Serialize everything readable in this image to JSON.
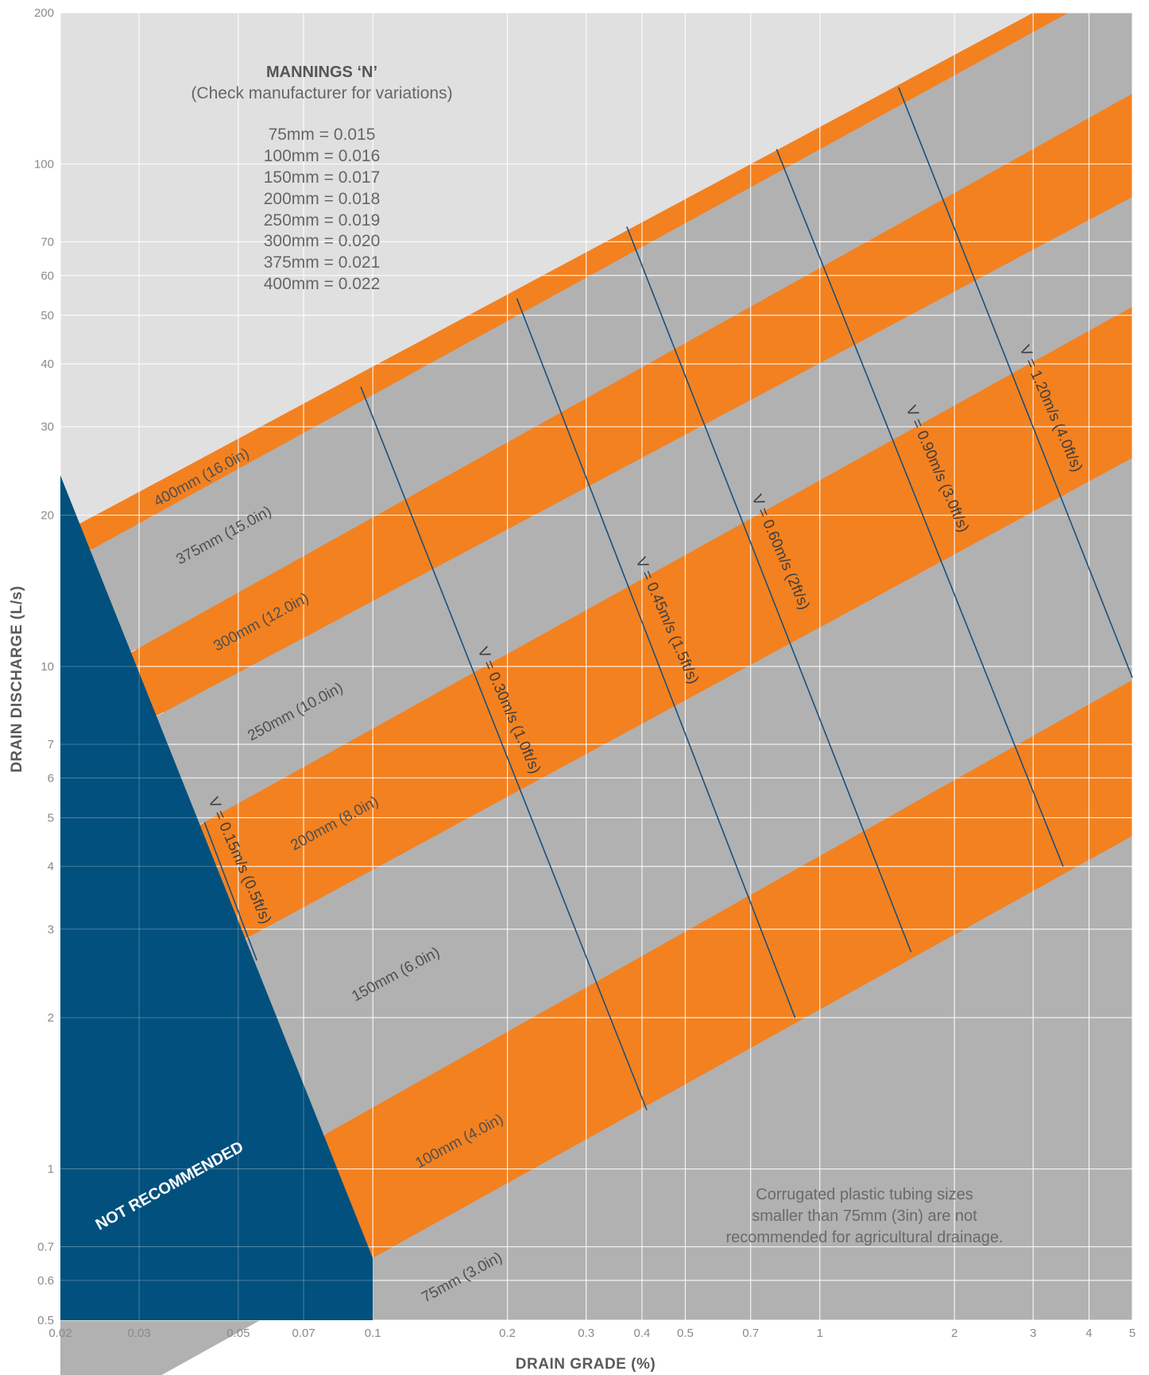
{
  "chart_data": {
    "type": "area",
    "title": "",
    "xlabel": "DRAIN GRADE (%)",
    "ylabel": "DRAIN DISCHARGE (L/s)",
    "x_scale": "log",
    "y_scale": "log",
    "xlim": [
      0.02,
      5
    ],
    "ylim": [
      0.5,
      200
    ],
    "x_ticks": [
      0.02,
      0.03,
      0.05,
      0.07,
      0.1,
      0.2,
      0.3,
      0.4,
      0.5,
      0.7,
      1,
      2,
      3,
      4,
      5
    ],
    "x_tick_labels": [
      "0.02",
      "0.03",
      "0.05",
      "0.07",
      "0.1",
      "0.2",
      "0.3",
      "0.4",
      "0.5",
      "0.7",
      "1",
      "2",
      "3",
      "4",
      "5"
    ],
    "y_ticks": [
      0.5,
      0.6,
      0.7,
      1,
      2,
      3,
      4,
      5,
      6,
      7,
      10,
      20,
      30,
      40,
      50,
      60,
      70,
      100,
      200
    ],
    "y_tick_labels": [
      "0.5",
      "0.6",
      "0.7",
      "1",
      "2",
      "3",
      "4",
      "5",
      "6",
      "7",
      "10",
      "20",
      "30",
      "40",
      "50",
      "60",
      "70",
      "100",
      "200"
    ],
    "grid": true,
    "colors": {
      "orange_band": "#f38120",
      "grey_band": "#b1b1b1",
      "above_capacity": "#e0e0e0",
      "not_recommended": "#02507d",
      "velocity_line": "#1e4f7a",
      "grid": "#ffffff"
    },
    "pipe_bands": [
      {
        "label": "75mm (3.0in)",
        "color": "grey",
        "lower_at_x": [
          0.02,
          0.02,
          5,
          0.02
        ],
        "upper": [
          [
            0.1,
            0.665
          ],
          [
            5,
            4.6
          ]
        ]
      },
      {
        "label": "100mm (4.0in)",
        "color": "orange",
        "lower": [
          [
            0.1,
            0.665
          ],
          [
            5,
            4.6
          ]
        ],
        "upper": [
          [
            0.078,
            1.17
          ],
          [
            5,
            9.4
          ]
        ]
      },
      {
        "label": "150mm (6.0in)",
        "color": "grey",
        "lower": [
          [
            0.078,
            1.17
          ],
          [
            5,
            9.4
          ]
        ],
        "upper": [
          [
            0.053,
            2.9
          ],
          [
            5,
            26
          ]
        ]
      },
      {
        "label": "200mm (8.0in)",
        "color": "orange",
        "lower": [
          [
            0.053,
            2.9
          ],
          [
            5,
            26
          ]
        ],
        "upper": [
          [
            0.042,
            4.9
          ],
          [
            5,
            52
          ]
        ]
      },
      {
        "label": "250mm (10.0in)",
        "color": "grey",
        "lower": [
          [
            0.042,
            4.9
          ],
          [
            5,
            52
          ]
        ],
        "upper": [
          [
            0.034,
            8.1
          ],
          [
            5,
            86
          ]
        ]
      },
      {
        "label": "300mm (12.0in)",
        "color": "orange",
        "lower": [
          [
            0.034,
            8.1
          ],
          [
            5,
            86
          ]
        ],
        "upper": [
          [
            0.0295,
            10.8
          ],
          [
            5,
            138
          ]
        ]
      },
      {
        "label": "375mm (15.0in)",
        "color": "grey",
        "lower": [
          [
            0.0295,
            10.8
          ],
          [
            5,
            138
          ]
        ],
        "upper": [
          [
            0.0235,
            17.1
          ],
          [
            3.6,
            200
          ]
        ]
      },
      {
        "label": "400mm (16.0in)",
        "color": "orange",
        "lower": [
          [
            0.0235,
            17.1
          ],
          [
            3.6,
            200
          ]
        ],
        "upper": [
          [
            0.022,
            19.2
          ],
          [
            3.0,
            200
          ]
        ]
      }
    ],
    "velocity_lines": [
      {
        "label": "V = 0.15m/s (0.5ft/s)",
        "points": [
          [
            0.042,
            4.9
          ],
          [
            0.055,
            2.6
          ]
        ]
      },
      {
        "label": "V = 0.30m/s (1.0ft/s)",
        "points": [
          [
            0.094,
            36
          ],
          [
            0.41,
            1.31
          ]
        ]
      },
      {
        "label": "V = 0.45m/s (1.5ft/s)",
        "points": [
          [
            0.21,
            54
          ],
          [
            0.88,
            2.0
          ]
        ]
      },
      {
        "label": "V = 0.60m/s (2ft/s)",
        "points": [
          [
            0.37,
            75
          ],
          [
            1.6,
            2.7
          ]
        ]
      },
      {
        "label": "V = 0.90m/s (3.0ft/s)",
        "points": [
          [
            0.8,
            107
          ],
          [
            3.5,
            4.0
          ]
        ]
      },
      {
        "label": "V = 1.20m/s (4.0ft/s)",
        "points": [
          [
            1.5,
            142
          ],
          [
            5,
            9.5
          ]
        ]
      }
    ],
    "not_recommended_region": {
      "label": "NOT RECOMMENDED",
      "boundary": [
        [
          0.02,
          24
        ],
        [
          0.1,
          0.665
        ],
        [
          0.1,
          0.5
        ],
        [
          0.02,
          0.5
        ]
      ]
    },
    "annotations": {
      "mannings_title": "MANNINGS ‘N’",
      "mannings_subtitle": "(Check manufacturer for variations)",
      "mannings_values": [
        "75mm = 0.015",
        "100mm = 0.016",
        "150mm = 0.017",
        "200mm = 0.018",
        "250mm = 0.019",
        "300mm = 0.020",
        "375mm = 0.021",
        "400mm = 0.022"
      ],
      "note_lines": [
        "Corrugated plastic tubing sizes",
        "smaller than 75mm (3in) are not",
        "recommended for agricultural drainage."
      ]
    }
  }
}
